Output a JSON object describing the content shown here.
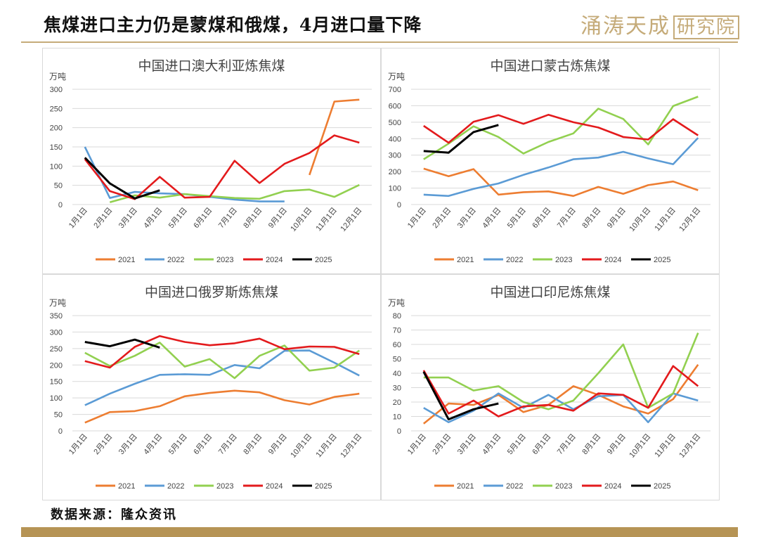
{
  "header": {
    "title": "焦煤进口主力仍是蒙煤和俄煤，4月进口量下降",
    "logo_text": "涌涛天成",
    "logo_boxed_text": "研究院"
  },
  "source": "数据来源：隆众资讯",
  "colors": {
    "2021": "#ed7d31",
    "2022": "#5b9bd5",
    "2023": "#92d050",
    "2024": "#e31a1c",
    "2025": "#000000",
    "accent": "#c5ab79",
    "footer": "#b69455"
  },
  "chart_data": [
    {
      "type": "line",
      "title": "中国进口澳大利亚炼焦煤",
      "unit": "万吨",
      "categories": [
        "1月1日",
        "2月1日",
        "3月1日",
        "4月1日",
        "5月1日",
        "6月1日",
        "7月1日",
        "8月1日",
        "9月1日",
        "10月1日",
        "11月1日",
        "12月1日"
      ],
      "ylim": [
        0,
        300
      ],
      "yticks": [
        0,
        50,
        100,
        150,
        200,
        250,
        300
      ],
      "legend": "bottom",
      "series": [
        {
          "name": "2021",
          "values": [
            null,
            null,
            null,
            null,
            null,
            null,
            null,
            null,
            null,
            77,
            268,
            273
          ]
        },
        {
          "name": "2022",
          "values": [
            150,
            17,
            33,
            29,
            27,
            20,
            13,
            8,
            8,
            null,
            null,
            null
          ]
        },
        {
          "name": "2023",
          "values": [
            null,
            6,
            24,
            18,
            27,
            22,
            17,
            15,
            35,
            39,
            20,
            51
          ]
        },
        {
          "name": "2024",
          "values": [
            118,
            35,
            14,
            72,
            18,
            20,
            114,
            56,
            106,
            134,
            180,
            161
          ]
        },
        {
          "name": "2025",
          "values": [
            122,
            55,
            16,
            37,
            null,
            null,
            null,
            null,
            null,
            null,
            null,
            null
          ]
        }
      ]
    },
    {
      "type": "line",
      "title": "中国进口蒙古炼焦煤",
      "unit": "万吨",
      "categories": [
        "1月1日",
        "2月1日",
        "3月1日",
        "4月1日",
        "5月1日",
        "6月1日",
        "7月1日",
        "8月1日",
        "9月1日",
        "10月1日",
        "11月1日",
        "12月1日"
      ],
      "ylim": [
        0,
        700
      ],
      "yticks": [
        0,
        100,
        200,
        300,
        400,
        500,
        600,
        700
      ],
      "legend": "bottom",
      "series": [
        {
          "name": "2021",
          "values": [
            218,
            172,
            215,
            60,
            75,
            80,
            52,
            107,
            65,
            118,
            140,
            87
          ]
        },
        {
          "name": "2022",
          "values": [
            60,
            52,
            95,
            128,
            180,
            225,
            275,
            285,
            320,
            280,
            245,
            405
          ]
        },
        {
          "name": "2023",
          "values": [
            275,
            370,
            475,
            410,
            310,
            380,
            432,
            582,
            520,
            365,
            598,
            655
          ]
        },
        {
          "name": "2024",
          "values": [
            478,
            375,
            503,
            543,
            490,
            545,
            500,
            468,
            410,
            395,
            518,
            420
          ]
        },
        {
          "name": "2025",
          "values": [
            325,
            315,
            440,
            483,
            null,
            null,
            null,
            null,
            null,
            null,
            null,
            null
          ]
        }
      ]
    },
    {
      "type": "line",
      "title": "中国进口俄罗斯炼焦煤",
      "unit": "万吨",
      "categories": [
        "1月1日",
        "2月1日",
        "3月1日",
        "4月1日",
        "5月1日",
        "6月1日",
        "7月1日",
        "8月1日",
        "9月1日",
        "10月1日",
        "11月1日",
        "12月1日"
      ],
      "ylim": [
        0,
        350
      ],
      "yticks": [
        0,
        50,
        100,
        150,
        200,
        250,
        300,
        350
      ],
      "legend": "bottom",
      "series": [
        {
          "name": "2021",
          "values": [
            25,
            57,
            60,
            75,
            105,
            115,
            122,
            117,
            93,
            80,
            103,
            113
          ]
        },
        {
          "name": "2022",
          "values": [
            78,
            113,
            143,
            170,
            172,
            170,
            200,
            190,
            243,
            244,
            207,
            168
          ]
        },
        {
          "name": "2023",
          "values": [
            237,
            197,
            228,
            268,
            195,
            218,
            160,
            228,
            259,
            183,
            192,
            244
          ]
        },
        {
          "name": "2024",
          "values": [
            212,
            192,
            255,
            288,
            270,
            260,
            266,
            280,
            248,
            256,
            255,
            233
          ]
        },
        {
          "name": "2025",
          "values": [
            270,
            257,
            277,
            253,
            null,
            null,
            null,
            null,
            null,
            null,
            null,
            null
          ]
        }
      ]
    },
    {
      "type": "line",
      "title": "中国进口印尼炼焦煤",
      "unit": "万吨",
      "categories": [
        "1月1日",
        "2月1日",
        "3月1日",
        "4月1日",
        "5月1日",
        "6月1日",
        "7月1日",
        "8月1日",
        "9月1日",
        "10月1日",
        "11月1日",
        "12月1日"
      ],
      "ylim": [
        0,
        80
      ],
      "yticks": [
        0,
        10,
        20,
        30,
        40,
        50,
        60,
        70,
        80
      ],
      "legend": "bottom",
      "series": [
        {
          "name": "2021",
          "values": [
            5,
            19,
            18,
            25,
            13,
            18,
            31,
            25,
            17,
            12,
            22,
            46
          ]
        },
        {
          "name": "2022",
          "values": [
            16,
            6,
            14,
            26,
            16,
            25,
            15,
            24,
            25,
            6,
            26,
            21
          ]
        },
        {
          "name": "2023",
          "values": [
            37,
            37,
            28,
            31,
            20,
            15,
            21,
            40,
            60,
            16,
            26,
            68
          ]
        },
        {
          "name": "2024",
          "values": [
            42,
            12,
            21,
            10,
            17,
            18,
            14,
            26,
            25,
            16,
            45,
            31
          ]
        },
        {
          "name": "2025",
          "values": [
            41,
            8,
            15,
            19,
            null,
            null,
            null,
            null,
            null,
            null,
            null,
            null
          ]
        }
      ]
    }
  ]
}
